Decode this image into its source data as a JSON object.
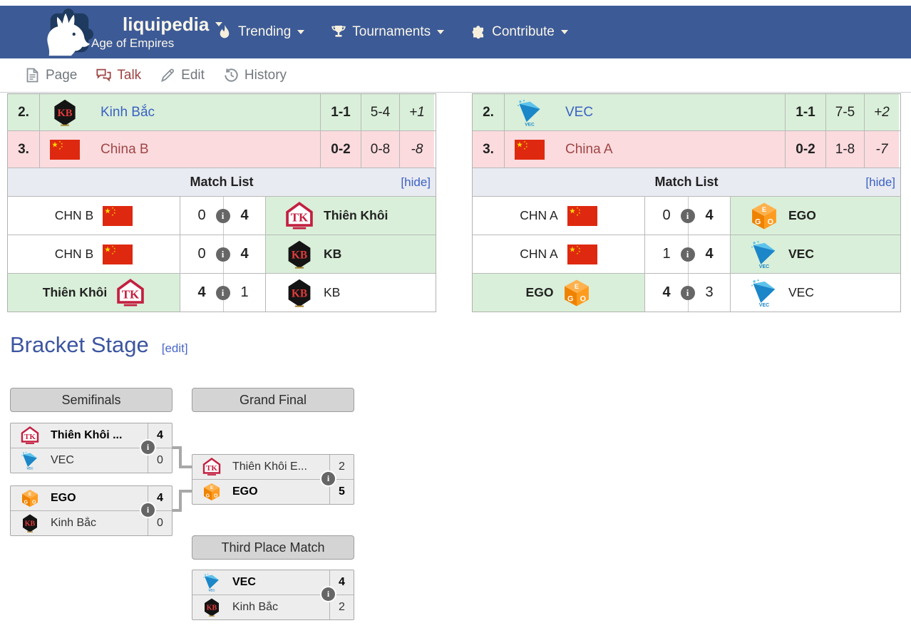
{
  "navbar": {
    "brand": "liquipedia",
    "brand_subtitle": "Age of Empires",
    "items": [
      {
        "label": "Trending",
        "icon": "flame-icon"
      },
      {
        "label": "Tournaments",
        "icon": "trophy-icon"
      },
      {
        "label": "Contribute",
        "icon": "puzzle-icon"
      }
    ]
  },
  "tabbar": {
    "tabs": [
      {
        "label": "Page",
        "icon": "page-icon"
      },
      {
        "label": "Talk",
        "icon": "talk-icon"
      },
      {
        "label": "Edit",
        "icon": "edit-icon"
      },
      {
        "label": "History",
        "icon": "history-icon"
      }
    ]
  },
  "groups": [
    {
      "standings": [
        {
          "pos": "2.",
          "team": "Kinh Bắc",
          "logo": "kb",
          "record": "1-1",
          "games": "5-4",
          "diff": "+1",
          "status": "advance"
        },
        {
          "pos": "3.",
          "team": "China B",
          "logo": "cn",
          "record": "0-2",
          "games": "0-8",
          "diff": "-8",
          "status": "eliminated"
        }
      ],
      "matchlist": {
        "title": "Match List",
        "toggle": "[hide]",
        "matches": [
          {
            "left_team": "CHN B",
            "left_logo": "cn",
            "left_score": "0",
            "right_score": "4",
            "right_team": "Thiên Khôi",
            "right_logo": "tk",
            "winner": "right"
          },
          {
            "left_team": "CHN B",
            "left_logo": "cn",
            "left_score": "0",
            "right_score": "4",
            "right_team": "KB",
            "right_logo": "kb",
            "winner": "right"
          },
          {
            "left_team": "Thiên Khôi",
            "left_logo": "tk",
            "left_score": "4",
            "right_score": "1",
            "right_team": "KB",
            "right_logo": "kb",
            "winner": "left"
          }
        ]
      }
    },
    {
      "standings": [
        {
          "pos": "2.",
          "team": "VEC",
          "logo": "vec",
          "record": "1-1",
          "games": "7-5",
          "diff": "+2",
          "status": "advance"
        },
        {
          "pos": "3.",
          "team": "China A",
          "logo": "cn",
          "record": "0-2",
          "games": "1-8",
          "diff": "-7",
          "status": "eliminated"
        }
      ],
      "matchlist": {
        "title": "Match List",
        "toggle": "[hide]",
        "matches": [
          {
            "left_team": "CHN A",
            "left_logo": "cn",
            "left_score": "0",
            "right_score": "4",
            "right_team": "EGO",
            "right_logo": "ego",
            "winner": "right"
          },
          {
            "left_team": "CHN A",
            "left_logo": "cn",
            "left_score": "1",
            "right_score": "4",
            "right_team": "VEC",
            "right_logo": "vec",
            "winner": "right"
          },
          {
            "left_team": "EGO",
            "left_logo": "ego",
            "left_score": "4",
            "right_score": "3",
            "right_team": "VEC",
            "right_logo": "vec",
            "winner": "left"
          }
        ]
      }
    }
  ],
  "bracket": {
    "title": "Bracket Stage",
    "edit": "[edit]",
    "headers": {
      "semifinals": "Semifinals",
      "grand_final": "Grand Final",
      "third_place": "Third Place Match"
    },
    "semifinal1": {
      "top": {
        "name": "Thiên Khôi ...",
        "logo": "tk",
        "score": "4",
        "winner": true
      },
      "bottom": {
        "name": "VEC",
        "logo": "vec",
        "score": "0",
        "winner": false
      }
    },
    "semifinal2": {
      "top": {
        "name": "EGO",
        "logo": "ego",
        "score": "4",
        "winner": true
      },
      "bottom": {
        "name": "Kinh Bắc",
        "logo": "kb",
        "score": "0",
        "winner": false
      }
    },
    "grand_final": {
      "top": {
        "name": "Thiên Khôi E...",
        "logo": "tk",
        "score": "2",
        "winner": false
      },
      "bottom": {
        "name": "EGO",
        "logo": "ego",
        "score": "5",
        "winner": true
      }
    },
    "third_place": {
      "top": {
        "name": "VEC",
        "logo": "vec",
        "score": "4",
        "winner": true
      },
      "bottom": {
        "name": "Kinh Bắc",
        "logo": "kb",
        "score": "2",
        "winner": false
      }
    }
  },
  "icons": {
    "info": "i",
    "caret": "▾"
  },
  "colors": {
    "navbar_bg": "#3c5a96",
    "advance_bg": "#d9efd9",
    "eliminated_bg": "#fbdbde",
    "link_blue": "#3b61c4",
    "heading_blue": "#3c55a0",
    "eliminated_text": "#a04646",
    "table_border": "#b9b9b9",
    "bracket_line": "#a8a8a8",
    "info_icon_bg": "#666666"
  }
}
